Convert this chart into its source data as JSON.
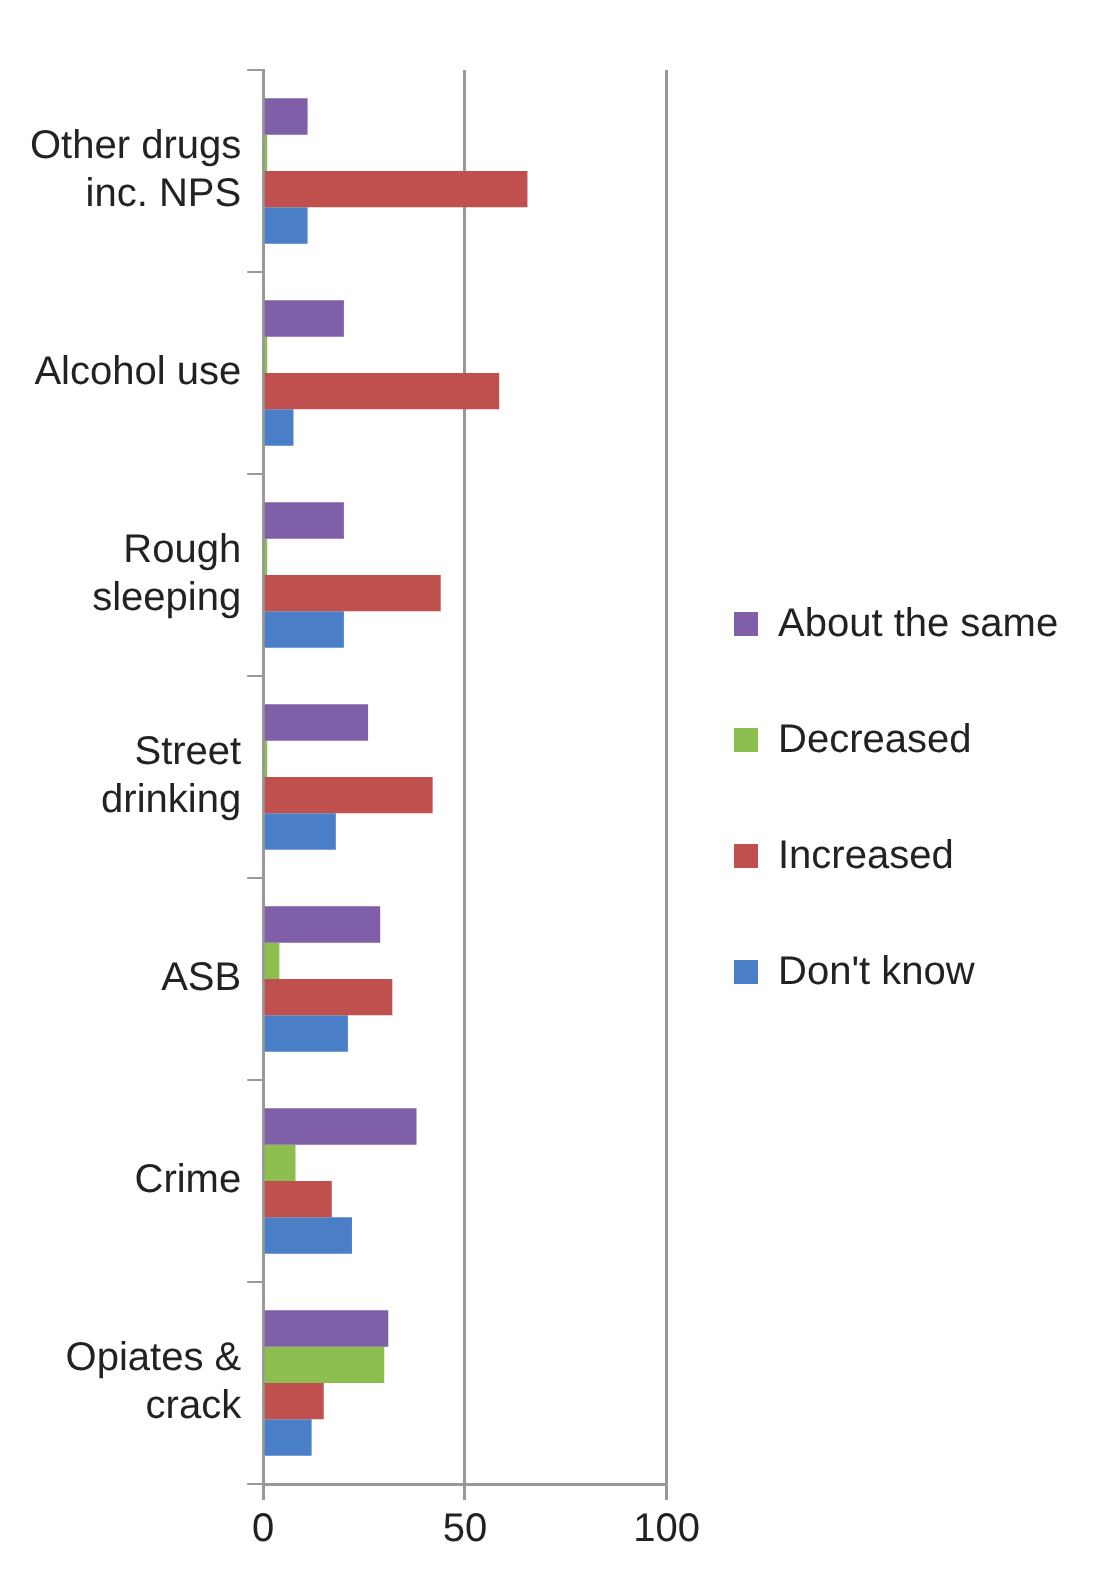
{
  "chart_data": {
    "type": "bar",
    "orientation": "horizontal",
    "categories": [
      "Other drugs inc. NPS",
      "Alcohol use",
      "Rough sleeping",
      "Street drinking",
      "ASB",
      "Crime",
      "Opiates & crack"
    ],
    "series": [
      {
        "name": "About the same",
        "color": "#7f5fa8",
        "values": [
          11,
          20,
          20,
          26,
          29,
          38,
          31
        ]
      },
      {
        "name": "Decreased",
        "color": "#8cbf4f",
        "values": [
          1,
          1,
          1,
          1,
          4,
          8,
          30
        ]
      },
      {
        "name": "Increased",
        "color": "#c0504d",
        "values": [
          65.5,
          58.5,
          44,
          42,
          32,
          17,
          15
        ]
      },
      {
        "name": "Don't know",
        "color": "#4a7fc8",
        "values": [
          11,
          7.5,
          20,
          18,
          21,
          22,
          12
        ]
      }
    ],
    "xlim": [
      0,
      100
    ],
    "xticks": [
      0,
      50,
      100
    ],
    "grid": "x",
    "legend": "right"
  }
}
